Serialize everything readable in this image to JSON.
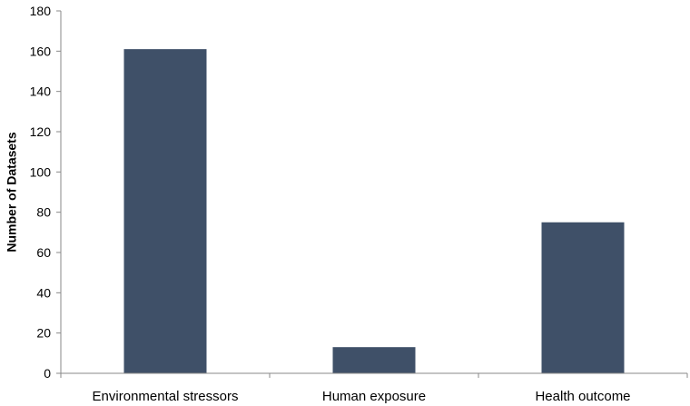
{
  "chart_data": {
    "type": "bar",
    "title": "",
    "xlabel": "",
    "ylabel": "Number of Datasets",
    "categories": [
      "Environmental stressors",
      "Human exposure",
      "Health outcome"
    ],
    "values": [
      161,
      13,
      75
    ],
    "ylim": [
      0,
      180
    ],
    "yticks": [
      0,
      20,
      40,
      60,
      80,
      100,
      120,
      140,
      160,
      180
    ],
    "grid": false,
    "legend": "none",
    "bar_color": "#3f5068",
    "axis_color": "#888888"
  }
}
